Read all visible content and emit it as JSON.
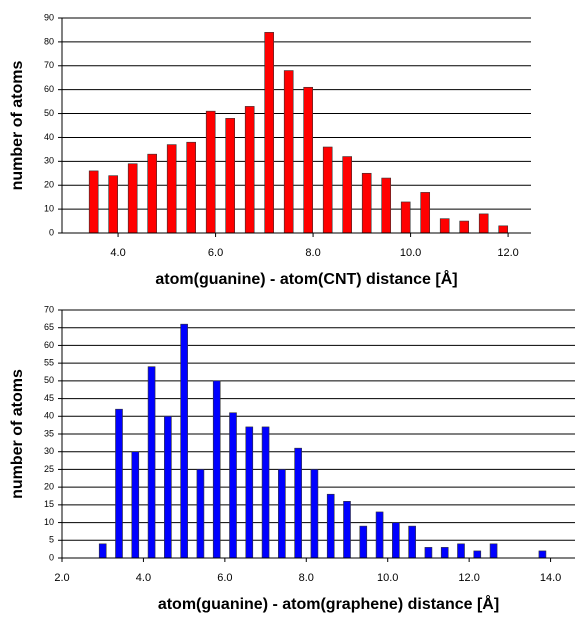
{
  "chart_data": [
    {
      "type": "bar",
      "x_label": "atom(guanine) - atom(CNT) distance [Å]",
      "y_label": "number of atoms",
      "color": "#ff0000",
      "x": [
        3.5,
        3.9,
        4.3,
        4.7,
        5.1,
        5.5,
        5.9,
        6.3,
        6.7,
        7.1,
        7.5,
        7.9,
        8.3,
        8.7,
        9.1,
        9.5,
        9.9,
        10.3,
        10.7,
        11.1,
        11.5,
        11.9
      ],
      "values": [
        26,
        24,
        29,
        33,
        37,
        38,
        51,
        48,
        53,
        84,
        68,
        61,
        36,
        32,
        25,
        23,
        13,
        17,
        6,
        5,
        8,
        3
      ],
      "xlim": [
        2.85,
        12.47
      ],
      "xticks": [
        {
          "value": 4,
          "label": "4.0"
        },
        {
          "value": 6,
          "label": "6.0"
        },
        {
          "value": 8,
          "label": "8.0"
        },
        {
          "value": 10,
          "label": "10.0"
        },
        {
          "value": 12,
          "label": "12.0"
        }
      ],
      "ylim": [
        0,
        90
      ],
      "yticks": [
        0,
        10,
        20,
        30,
        40,
        50,
        60,
        70,
        80,
        90
      ],
      "grid": true
    },
    {
      "type": "bar",
      "x_label": "atom(guanine) - atom(graphene) distance [Å]",
      "y_label": "number of atoms",
      "color": "#0000ff",
      "x": [
        3.0,
        3.4,
        3.8,
        4.2,
        4.6,
        5.0,
        5.4,
        5.8,
        6.2,
        6.6,
        7.0,
        7.4,
        7.8,
        8.2,
        8.6,
        9.0,
        9.4,
        9.8,
        10.2,
        10.6,
        11.0,
        11.4,
        11.8,
        12.2,
        12.6,
        13.8
      ],
      "values": [
        4,
        42,
        30,
        54,
        40,
        66,
        25,
        50,
        41,
        37,
        37,
        25,
        31,
        25,
        18,
        16,
        9,
        13,
        10,
        9,
        3,
        3,
        4,
        2,
        4,
        2
      ],
      "xlim": [
        2.0,
        14.6
      ],
      "xticks": [
        {
          "value": 2,
          "label": "2.0"
        },
        {
          "value": 4,
          "label": "4.0"
        },
        {
          "value": 6,
          "label": "6.0"
        },
        {
          "value": 8,
          "label": "8.0"
        },
        {
          "value": 10,
          "label": "10.0"
        },
        {
          "value": 12,
          "label": "12.0"
        },
        {
          "value": 14,
          "label": "14.0"
        }
      ],
      "ylim": [
        0,
        70
      ],
      "yticks": [
        0,
        5,
        10,
        15,
        20,
        25,
        30,
        35,
        40,
        45,
        50,
        55,
        60,
        65,
        70
      ],
      "grid": true
    }
  ]
}
